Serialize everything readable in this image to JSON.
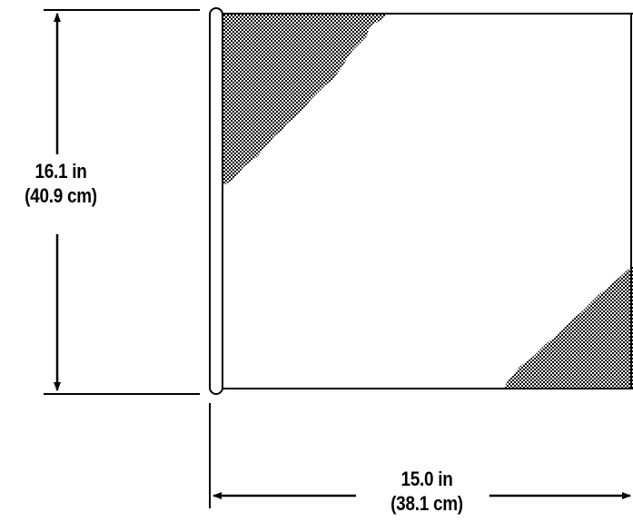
{
  "dimensions": {
    "height": {
      "primary": "16.1 in",
      "secondary": "(40.9 cm)"
    },
    "width": {
      "primary": "15.0 in",
      "secondary": "(38.1 cm)"
    }
  },
  "colors": {
    "line": "#000000",
    "background": "#ffffff",
    "shading_pattern": "#000000"
  }
}
